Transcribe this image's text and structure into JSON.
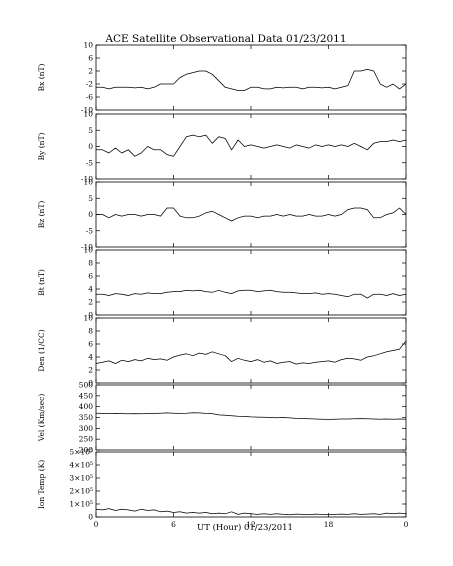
{
  "chart_data": {
    "type": "line",
    "title": "ACE Satellite Observational Data   01/23/2011",
    "xlabel": "UT (Hour)   01/23/2011",
    "x_ticks": [
      "0",
      "6",
      "12",
      "18",
      "0"
    ],
    "xlim": [
      0,
      24
    ],
    "panels": [
      {
        "ylabel": "Bx (nT)",
        "ylim": [
          -10,
          10
        ],
        "y_ticks": [
          "10",
          "6",
          "2",
          "-2",
          "-6",
          "-10"
        ],
        "series": [
          {
            "x": [
              0,
              0.5,
              1,
              1.5,
              2,
              2.5,
              3,
              3.5,
              4,
              4.5,
              5,
              5.5,
              6,
              6.5,
              7,
              7.5,
              8,
              8.5,
              9,
              9.5,
              10,
              10.5,
              11,
              11.5,
              12,
              12.5,
              13,
              13.5,
              14,
              14.5,
              15,
              15.5,
              16,
              16.5,
              17,
              17.5,
              18,
              18.5,
              19,
              19.5,
              20,
              20.5,
              21,
              21.5,
              22,
              22.5,
              23,
              23.5,
              24
            ],
            "values": [
              -3,
              -3,
              -3.5,
              -3,
              -3,
              -3,
              -3.2,
              -3,
              -3.5,
              -3,
              -2,
              -2,
              -2,
              0,
              1,
              1.5,
              2,
              2,
              1,
              -1,
              -3,
              -3.5,
              -4,
              -4,
              -3,
              -3,
              -3.5,
              -3.5,
              -3,
              -3.2,
              -3,
              -3,
              -3.5,
              -3,
              -3,
              -3.2,
              -3,
              -3.5,
              -3,
              -2.5,
              2,
              2,
              2.5,
              2,
              -2,
              -3,
              -2,
              -3.5,
              -2
            ]
          }
        ]
      },
      {
        "ylabel": "By (nT)",
        "ylim": [
          -10,
          10
        ],
        "y_ticks": [
          "10",
          "5",
          "0",
          "-5",
          "-10"
        ],
        "series": [
          {
            "x": [
              0,
              0.5,
              1,
              1.5,
              2,
              2.5,
              3,
              3.5,
              4,
              4.5,
              5,
              5.5,
              6,
              6.5,
              7,
              7.5,
              8,
              8.5,
              9,
              9.5,
              10,
              10.5,
              11,
              11.5,
              12,
              12.5,
              13,
              13.5,
              14,
              14.5,
              15,
              15.5,
              16,
              16.5,
              17,
              17.5,
              18,
              18.5,
              19,
              19.5,
              20,
              20.5,
              21,
              21.5,
              22,
              22.5,
              23,
              23.5,
              24
            ],
            "values": [
              -1,
              -1,
              -2,
              -0.5,
              -2,
              -1,
              -3,
              -2,
              0,
              -1,
              -1,
              -2.5,
              -3,
              0,
              3,
              3.5,
              3,
              3.5,
              1,
              3,
              2.5,
              -1,
              2,
              0,
              0.5,
              0,
              -0.5,
              0,
              0.5,
              0,
              -0.5,
              0.5,
              0,
              -0.5,
              0.5,
              0,
              0.5,
              0,
              0.5,
              0,
              1,
              0,
              -1,
              1,
              1.5,
              1.5,
              2,
              1.5,
              2
            ]
          }
        ]
      },
      {
        "ylabel": "Bz (nT)",
        "ylim": [
          -10,
          10
        ],
        "y_ticks": [
          "10",
          "5",
          "0",
          "-5",
          "-10"
        ],
        "series": [
          {
            "x": [
              0,
              0.5,
              1,
              1.5,
              2,
              2.5,
              3,
              3.5,
              4,
              4.5,
              5,
              5.5,
              6,
              6.5,
              7,
              7.5,
              8,
              8.5,
              9,
              9.5,
              10,
              10.5,
              11,
              11.5,
              12,
              12.5,
              13,
              13.5,
              14,
              14.5,
              15,
              15.5,
              16,
              16.5,
              17,
              17.5,
              18,
              18.5,
              19,
              19.5,
              20,
              20.5,
              21,
              21.5,
              22,
              22.5,
              23,
              23.5,
              24
            ],
            "values": [
              0,
              0,
              -1,
              0,
              -0.5,
              0,
              0,
              -0.5,
              0,
              0,
              -0.5,
              2,
              2,
              -0.5,
              -1,
              -1,
              -0.5,
              0.5,
              1,
              0,
              -1,
              -2,
              -1,
              -0.5,
              -0.5,
              -1,
              -0.5,
              -0.5,
              0,
              -0.5,
              0,
              -0.5,
              -0.5,
              0,
              -0.5,
              -0.5,
              0,
              -0.5,
              0,
              1.5,
              2,
              2,
              1.5,
              -1,
              -1,
              0,
              0.5,
              2,
              0
            ]
          }
        ]
      },
      {
        "ylabel": "Bt (nT)",
        "ylim": [
          0,
          10
        ],
        "y_ticks": [
          "10",
          "8",
          "6",
          "4",
          "2",
          "0"
        ],
        "series": [
          {
            "x": [
              0,
              0.5,
              1,
              1.5,
              2,
              2.5,
              3,
              3.5,
              4,
              4.5,
              5,
              5.5,
              6,
              6.5,
              7,
              7.5,
              8,
              8.5,
              9,
              9.5,
              10,
              10.5,
              11,
              11.5,
              12,
              12.5,
              13,
              13.5,
              14,
              14.5,
              15,
              15.5,
              16,
              16.5,
              17,
              17.5,
              18,
              18.5,
              19,
              19.5,
              20,
              20.5,
              21,
              21.5,
              22,
              22.5,
              23,
              23.5,
              24
            ],
            "values": [
              3.2,
              3.2,
              3,
              3.3,
              3.2,
              3,
              3.3,
              3.2,
              3.4,
              3.3,
              3.3,
              3.5,
              3.6,
              3.6,
              3.8,
              3.7,
              3.8,
              3.6,
              3.5,
              3.8,
              3.5,
              3.3,
              3.7,
              3.8,
              3.8,
              3.6,
              3.7,
              3.8,
              3.6,
              3.5,
              3.5,
              3.4,
              3.3,
              3.3,
              3.4,
              3.2,
              3.3,
              3.2,
              3.0,
              2.8,
              3.2,
              3.2,
              2.6,
              3.2,
              3.2,
              3.0,
              3.3,
              3.0,
              3.2
            ]
          }
        ]
      },
      {
        "ylabel": "Den (1/CC)",
        "ylim": [
          0,
          10
        ],
        "y_ticks": [
          "10",
          "8",
          "6",
          "4",
          "2",
          "0"
        ],
        "series": [
          {
            "x": [
              0,
              0.5,
              1,
              1.5,
              2,
              2.5,
              3,
              3.5,
              4,
              4.5,
              5,
              5.5,
              6,
              6.5,
              7,
              7.5,
              8,
              8.5,
              9,
              9.5,
              10,
              10.5,
              11,
              11.5,
              12,
              12.5,
              13,
              13.5,
              14,
              14.5,
              15,
              15.5,
              16,
              16.5,
              17,
              17.5,
              18,
              18.5,
              19,
              19.5,
              20,
              20.5,
              21,
              21.5,
              22,
              22.5,
              23,
              23.5,
              24
            ],
            "values": [
              3.0,
              3.2,
              3.4,
              3.0,
              3.5,
              3.3,
              3.6,
              3.4,
              3.8,
              3.6,
              3.7,
              3.5,
              4.0,
              4.3,
              4.5,
              4.2,
              4.6,
              4.4,
              4.8,
              4.5,
              4.2,
              3.3,
              3.8,
              3.5,
              3.3,
              3.6,
              3.2,
              3.4,
              3.0,
              3.2,
              3.3,
              2.9,
              3.1,
              3.0,
              3.2,
              3.3,
              3.4,
              3.2,
              3.6,
              3.8,
              3.7,
              3.5,
              4.0,
              4.2,
              4.5,
              4.8,
              5.0,
              5.2,
              6.5
            ]
          }
        ]
      },
      {
        "ylabel": "Vel (Km/sec)",
        "ylim": [
          200,
          500
        ],
        "y_ticks": [
          "500",
          "450",
          "400",
          "350",
          "300",
          "250",
          "200"
        ],
        "series": [
          {
            "x": [
              0,
              0.5,
              1,
              1.5,
              2,
              2.5,
              3,
              3.5,
              4,
              4.5,
              5,
              5.5,
              6,
              6.5,
              7,
              7.5,
              8,
              8.5,
              9,
              9.5,
              10,
              10.5,
              11,
              11.5,
              12,
              12.5,
              13,
              13.5,
              14,
              14.5,
              15,
              15.5,
              16,
              16.5,
              17,
              17.5,
              18,
              18.5,
              19,
              19.5,
              20,
              20.5,
              21,
              21.5,
              22,
              22.5,
              23,
              23.5,
              24
            ],
            "values": [
              370,
              369,
              368,
              369,
              368,
              367,
              368,
              367,
              368,
              369,
              370,
              371,
              370,
              369,
              370,
              372,
              371,
              369,
              368,
              362,
              360,
              358,
              356,
              355,
              353,
              352,
              351,
              350,
              349,
              350,
              348,
              346,
              345,
              344,
              343,
              342,
              341,
              342,
              343,
              343,
              344,
              345,
              344,
              343,
              342,
              343,
              342,
              343,
              342
            ]
          }
        ]
      },
      {
        "ylabel": "Ion Temp (K)",
        "ylim": [
          0,
          500000
        ],
        "y_ticks": [
          "5×10⁵",
          "4×10⁵",
          "3×10⁵",
          "2×10⁵",
          "1×10⁵",
          "0"
        ],
        "series": [
          {
            "x": [
              0,
              0.5,
              1,
              1.5,
              2,
              2.5,
              3,
              3.5,
              4,
              4.5,
              5,
              5.5,
              6,
              6.5,
              7,
              7.5,
              8,
              8.5,
              9,
              9.5,
              10,
              10.5,
              11,
              11.5,
              12,
              12.5,
              13,
              13.5,
              14,
              14.5,
              15,
              15.5,
              16,
              16.5,
              17,
              17.5,
              18,
              18.5,
              19,
              19.5,
              20,
              20.5,
              21,
              21.5,
              22,
              22.5,
              23,
              23.5,
              24
            ],
            "values": [
              60000,
              55000,
              65000,
              50000,
              60000,
              55000,
              45000,
              60000,
              50000,
              55000,
              40000,
              45000,
              35000,
              40000,
              30000,
              35000,
              30000,
              35000,
              25000,
              30000,
              25000,
              40000,
              20000,
              30000,
              25000,
              20000,
              25000,
              20000,
              25000,
              20000,
              18000,
              22000,
              20000,
              18000,
              22000,
              20000,
              18000,
              20000,
              22000,
              20000,
              25000,
              20000,
              22000,
              25000,
              20000,
              30000,
              25000,
              30000,
              25000
            ]
          }
        ]
      }
    ]
  }
}
